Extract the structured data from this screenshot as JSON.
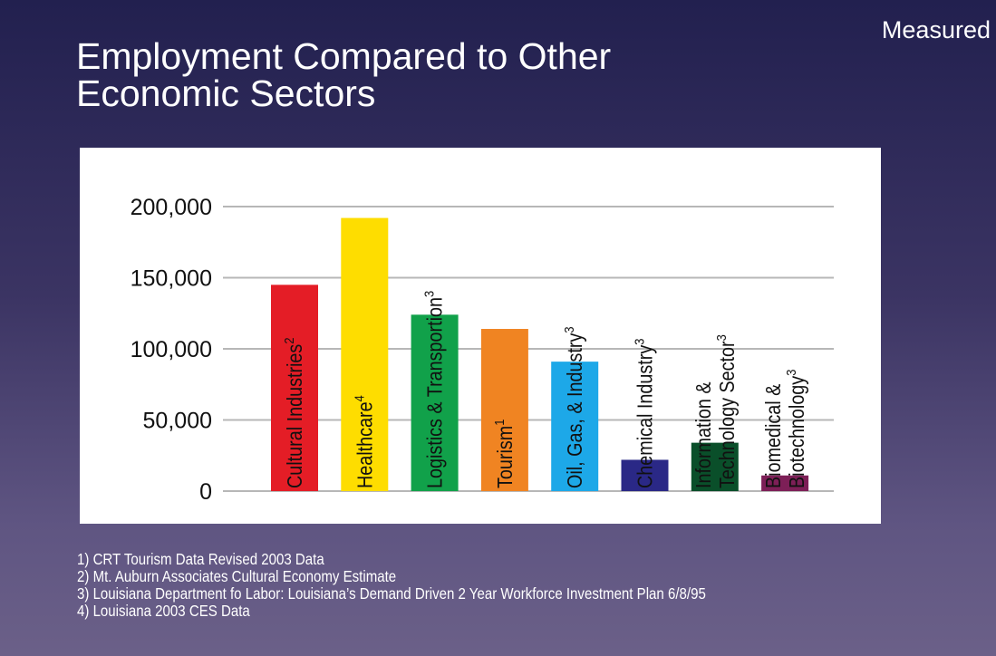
{
  "corner_label": "Measured",
  "title_lines": [
    "Employment Compared to Other",
    "Economic Sectors"
  ],
  "chart_data": {
    "type": "bar",
    "title": "Employment Compared to Other Economic Sectors",
    "xlabel": "",
    "ylabel": "",
    "ylim": [
      0,
      200000
    ],
    "yticks": [
      0,
      50000,
      100000,
      150000,
      200000
    ],
    "ytick_labels": [
      "0",
      "50,000",
      "100,000",
      "150,000",
      "200,000"
    ],
    "grid": true,
    "categories": [
      {
        "lines": [
          "Cultural Industries"
        ],
        "sup": "2"
      },
      {
        "lines": [
          "Healthcare"
        ],
        "sup": "4"
      },
      {
        "lines": [
          "Logistics & Transportion"
        ],
        "sup": "3"
      },
      {
        "lines": [
          "Tourism"
        ],
        "sup": "1"
      },
      {
        "lines": [
          "Oil, Gas, & Industry"
        ],
        "sup": "3"
      },
      {
        "lines": [
          "Chemical Industry"
        ],
        "sup": "3"
      },
      {
        "lines": [
          "Information &",
          "Technology Sector"
        ],
        "sup": "3"
      },
      {
        "lines": [
          "Biomedical &",
          "Biotechnology"
        ],
        "sup": "3"
      }
    ],
    "values": [
      145000,
      192000,
      124000,
      114000,
      91000,
      22000,
      34000,
      11000
    ],
    "colors": [
      "#e41d26",
      "#fedd00",
      "#11a14a",
      "#f08422",
      "#1da8e8",
      "#2a2886",
      "#0a4f2a",
      "#7d1f57"
    ]
  },
  "footnotes": [
    "1) CRT Tourism Data Revised 2003 Data",
    "2) Mt. Auburn Associates Cultural Economy Estimate",
    "3) Louisiana Department fo Labor: Louisiana’s Demand Driven 2 Year Workforce Investment Plan 6/8/95",
    "4) Louisiana 2003 CES Data"
  ]
}
